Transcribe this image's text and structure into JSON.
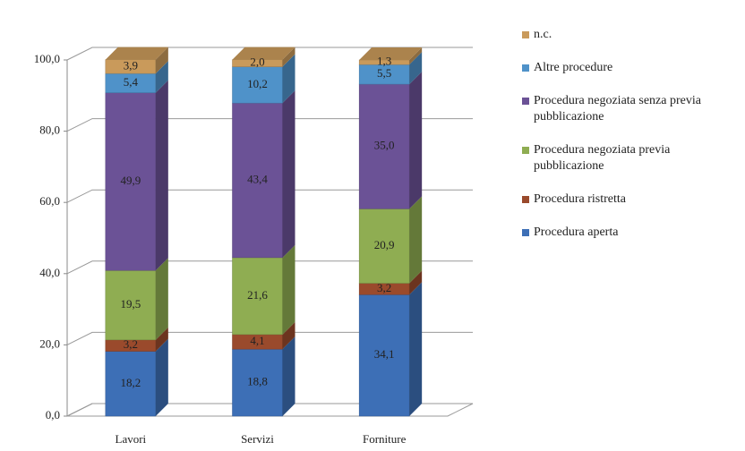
{
  "chart_data": {
    "type": "bar",
    "stacked": true,
    "categories": [
      "Lavori",
      "Servizi",
      "Forniture"
    ],
    "series": [
      {
        "name": "Procedura aperta",
        "color": "#3d6fb6",
        "values": [
          18.2,
          18.8,
          34.1
        ],
        "value_labels": [
          "18,2",
          "18,8",
          "34,1"
        ]
      },
      {
        "name": "Procedura ristretta",
        "color": "#9a4a2c",
        "values": [
          3.2,
          4.1,
          3.2
        ],
        "value_labels": [
          "3,2",
          "4,1",
          "3,2"
        ]
      },
      {
        "name": "Procedura negoziata previa pubblicazione",
        "color": "#8fad52",
        "values": [
          19.5,
          21.6,
          20.9
        ],
        "value_labels": [
          "19,5",
          "21,6",
          "20,9"
        ]
      },
      {
        "name": "Procedura negoziata senza previa pubblicazione",
        "color": "#6b5296",
        "values": [
          49.9,
          43.4,
          35.0
        ],
        "value_labels": [
          "49,9",
          "43,4",
          "35,0"
        ]
      },
      {
        "name": "Altre procedure",
        "color": "#4f92c9",
        "values": [
          5.4,
          10.2,
          5.5
        ],
        "value_labels": [
          "5,4",
          "10,2",
          "5,5"
        ]
      },
      {
        "name": "n.c.",
        "color": "#c99a5b",
        "values": [
          3.9,
          2.0,
          1.3
        ],
        "value_labels": [
          "3,9",
          "2,0",
          "1,3"
        ]
      }
    ],
    "ylim": [
      0,
      100
    ],
    "yticks": [
      {
        "value": 0,
        "label": "0,0"
      },
      {
        "value": 20,
        "label": "20,0"
      },
      {
        "value": 40,
        "label": "40,0"
      },
      {
        "value": 60,
        "label": "60,0"
      },
      {
        "value": 80,
        "label": "80,0"
      },
      {
        "value": 100,
        "label": "100,0"
      }
    ],
    "grid": true,
    "legend": "right"
  }
}
